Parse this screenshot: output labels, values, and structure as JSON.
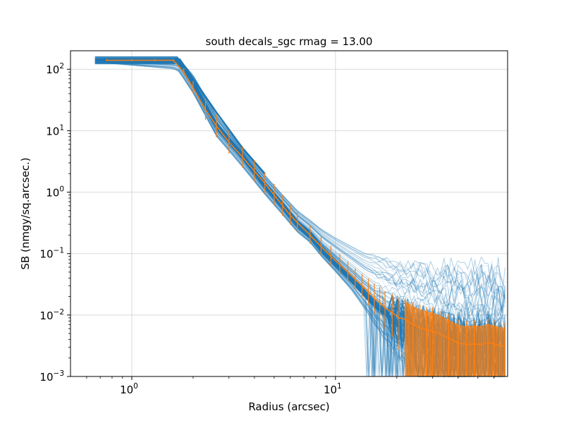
{
  "chart_data": {
    "type": "line",
    "title": "south decals_sgc rmag = 13.00",
    "xlabel": "Radius (arcsec)",
    "ylabel": "SB (nmgy/sq.arcsec.)",
    "xscale": "log",
    "yscale": "log",
    "xlim": [
      0.5,
      70
    ],
    "ylim": [
      0.001,
      200
    ],
    "grid": true,
    "x_ticks": [
      {
        "value": 1,
        "base": "10",
        "exp": "0"
      },
      {
        "value": 10,
        "base": "10",
        "exp": "1"
      }
    ],
    "y_ticks": [
      {
        "value": 100,
        "base": "10",
        "exp": "2"
      },
      {
        "value": 10,
        "base": "10",
        "exp": "1"
      },
      {
        "value": 1,
        "base": "10",
        "exp": "0"
      },
      {
        "value": 0.1,
        "base": "10",
        "exp": "−1"
      },
      {
        "value": 0.01,
        "base": "10",
        "exp": "−2"
      },
      {
        "value": 0.001,
        "base": "10",
        "exp": "−3"
      }
    ],
    "colors": {
      "individual_profiles": "#1f77b4",
      "median_profile": "#ff7f0e",
      "grid": "#d9d9d9"
    },
    "series": [
      {
        "role": "individual_profiles",
        "count_approx": 100,
        "note_values": "many thin translucent blue lines; representative envelope below",
        "x": [
          0.66,
          1.6,
          1.7,
          2.0,
          2.6,
          3.5,
          4.5,
          5.5,
          6.5,
          7.5,
          8.5,
          10,
          12,
          14,
          16,
          20,
          25,
          30,
          40,
          50,
          68
        ],
        "y_median": [
          140,
          140,
          140,
          60,
          12,
          3.8,
          1.3,
          0.6,
          0.3,
          0.2,
          0.12,
          0.07,
          0.038,
          0.022,
          0.014,
          0.008,
          0.006,
          0.005,
          0.004,
          0.0037,
          0.0033
        ],
        "y_high": [
          150,
          150,
          150,
          80,
          18,
          5.0,
          1.9,
          0.9,
          0.5,
          0.35,
          0.25,
          0.18,
          0.13,
          0.1,
          0.09,
          0.07,
          0.06,
          0.055,
          0.05,
          0.045,
          0.04
        ],
        "y_low": [
          130,
          100,
          90,
          40,
          8,
          2.5,
          0.9,
          0.42,
          0.22,
          0.15,
          0.09,
          0.05,
          0.025,
          0.012,
          0.006,
          0.002,
          0.001,
          0.001,
          0.001,
          0.001,
          0.001
        ]
      },
      {
        "role": "median_profile",
        "x": [
          0.75,
          1.0,
          1.3,
          1.6,
          1.8,
          2.0,
          2.3,
          2.6,
          3.0,
          3.5,
          4.0,
          4.5,
          5.0,
          5.5,
          6.0,
          6.5,
          7.5,
          8.5,
          9.5,
          10.5,
          11.5,
          12.5,
          13.5,
          14.5,
          15.5,
          16.5,
          17.5,
          19,
          20.5,
          22,
          24,
          26,
          28,
          30,
          33,
          36,
          40,
          44,
          48,
          52,
          56,
          60,
          64,
          68
        ],
        "y": [
          140,
          140,
          140,
          140,
          90,
          50,
          22,
          12,
          6.5,
          3.7,
          2.2,
          1.4,
          0.9,
          0.6,
          0.42,
          0.32,
          0.2,
          0.13,
          0.09,
          0.066,
          0.05,
          0.038,
          0.03,
          0.024,
          0.019,
          0.016,
          0.013,
          0.011,
          0.009,
          0.0085,
          0.007,
          0.0062,
          0.0057,
          0.0055,
          0.0048,
          0.0042,
          0.0035,
          0.0033,
          0.0034,
          0.0033,
          0.0036,
          0.0034,
          0.0032,
          0.0031
        ],
        "err_frac": [
          0.03,
          0.03,
          0.03,
          0.03,
          0.1,
          0.18,
          0.32,
          0.35,
          0.35,
          0.33,
          0.32,
          0.32,
          0.32,
          0.32,
          0.3,
          0.3,
          0.28,
          0.28,
          0.3,
          0.3,
          0.3,
          0.32,
          0.35,
          0.4,
          0.45,
          0.5,
          0.55,
          0.6,
          0.7,
          0.75,
          0.8,
          0.85,
          0.85,
          0.9,
          0.9,
          0.9,
          0.9,
          0.9,
          0.9,
          0.9,
          0.9,
          0.9,
          0.9,
          0.9
        ]
      }
    ]
  }
}
